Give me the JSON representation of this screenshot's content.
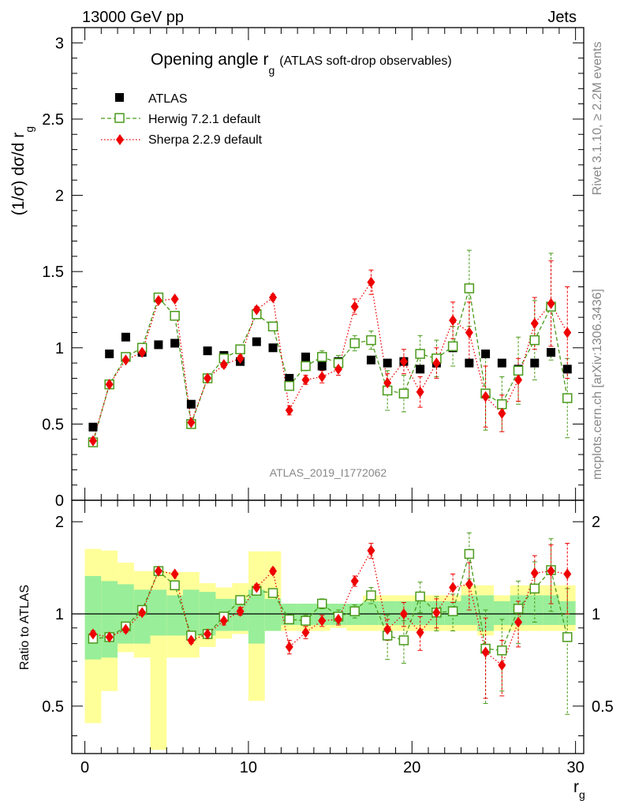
{
  "header": {
    "energy_label": "13000 GeV pp",
    "process_label": "Jets"
  },
  "side": {
    "rivet_label": "Rivet 3.1.10, ≥ 2.2M events",
    "mcplots_label": "mcplots.cern.ch [arXiv:1306.3436]"
  },
  "chart_data": {
    "type": "scatter",
    "title": "Opening angle r",
    "title_sub": "g",
    "title_suffix": "(ATLAS soft-drop observables)",
    "analysis_id": "ATLAS_2019_I1772062",
    "xlabel": "r",
    "xlabel_sub": "g",
    "ylabel": "(1/σ) dσ/d r",
    "ylabel_sub": "g",
    "ratio_ylabel": "Ratio to ATLAS",
    "xlim": [
      -0.8,
      30.5
    ],
    "ylim": [
      0,
      3.1
    ],
    "ratio_ylim": [
      0.35,
      2.35
    ],
    "x_ticks": [
      "0",
      "10",
      "20",
      "30"
    ],
    "y_ticks": [
      "0",
      "0.5",
      "1",
      "1.5",
      "2",
      "2.5",
      "3"
    ],
    "ratio_ticks": [
      "0.5",
      "1",
      "2"
    ],
    "legend": [
      "ATLAS",
      "Herwig 7.2.1 default",
      "Sherpa 2.2.9 default"
    ],
    "x": [
      0.5,
      1.5,
      2.5,
      3.5,
      4.5,
      5.5,
      6.5,
      7.5,
      8.5,
      9.5,
      10.5,
      11.5,
      12.5,
      13.5,
      14.5,
      15.5,
      16.5,
      17.5,
      18.5,
      19.5,
      20.5,
      21.5,
      22.5,
      23.5,
      24.5,
      25.5,
      26.5,
      27.5,
      28.5,
      29.5
    ],
    "series": [
      {
        "name": "ATLAS",
        "color": "#000000",
        "values": [
          0.48,
          0.96,
          1.07,
          0.97,
          1.02,
          1.03,
          0.63,
          0.98,
          0.95,
          0.91,
          1.04,
          1.0,
          0.8,
          0.94,
          0.88,
          0.91,
          1.03,
          0.92,
          0.9,
          0.91,
          0.86,
          0.9,
          1.0,
          0.9,
          0.96,
          0.9,
          0.86,
          0.9,
          0.97,
          0.86
        ]
      },
      {
        "name": "Herwig 7.2.1 default",
        "color": "#4a9a1a",
        "values": [
          0.38,
          0.76,
          0.94,
          1.0,
          1.33,
          1.21,
          0.5,
          0.8,
          0.93,
          0.99,
          1.22,
          1.14,
          0.75,
          0.88,
          0.94,
          0.9,
          1.03,
          1.05,
          0.72,
          0.7,
          0.96,
          0.93,
          1.01,
          1.39,
          0.7,
          0.63,
          0.85,
          1.05,
          1.27,
          0.67
        ],
        "errors": [
          0.01,
          0.01,
          0.01,
          0.01,
          0.01,
          0.01,
          0.01,
          0.02,
          0.02,
          0.02,
          0.02,
          0.02,
          0.02,
          0.03,
          0.04,
          0.05,
          0.05,
          0.06,
          0.13,
          0.12,
          0.12,
          0.12,
          0.13,
          0.25,
          0.24,
          0.18,
          0.22,
          0.26,
          0.35,
          0.26
        ]
      },
      {
        "name": "Sherpa 2.2.9 default",
        "color": "#ee0000",
        "values": [
          0.39,
          0.76,
          0.92,
          0.97,
          1.31,
          1.32,
          0.51,
          0.8,
          0.89,
          0.93,
          1.25,
          1.33,
          0.59,
          0.79,
          0.81,
          0.86,
          1.27,
          1.43,
          0.77,
          0.91,
          0.71,
          0.9,
          1.18,
          1.1,
          0.68,
          0.57,
          0.79,
          1.16,
          1.29,
          1.1
        ],
        "errors": [
          0.01,
          0.01,
          0.01,
          0.01,
          0.01,
          0.01,
          0.01,
          0.02,
          0.02,
          0.02,
          0.02,
          0.02,
          0.03,
          0.03,
          0.04,
          0.04,
          0.05,
          0.08,
          0.06,
          0.08,
          0.1,
          0.1,
          0.12,
          0.2,
          0.2,
          0.12,
          0.14,
          0.17,
          0.28,
          0.3
        ]
      }
    ],
    "ratio": {
      "herwig": [
        0.83,
        0.84,
        0.91,
        1.03,
        1.38,
        1.24,
        0.85,
        0.86,
        0.98,
        1.11,
        1.19,
        1.17,
        0.96,
        0.95,
        1.08,
        0.98,
        1.02,
        1.15,
        0.85,
        0.82,
        1.14,
        1.01,
        1.02,
        1.57,
        0.77,
        0.76,
        1.04,
        1.21,
        1.39,
        0.84
      ],
      "sherpa": [
        0.86,
        0.84,
        0.89,
        1.01,
        1.38,
        1.35,
        0.82,
        0.86,
        0.95,
        1.02,
        1.22,
        1.38,
        0.78,
        0.87,
        0.95,
        0.96,
        1.28,
        1.61,
        0.89,
        1.0,
        0.87,
        1.01,
        1.22,
        1.25,
        0.75,
        0.68,
        0.94,
        1.36,
        1.38,
        1.35
      ],
      "herwig_err": [
        0.02,
        0.02,
        0.02,
        0.02,
        0.02,
        0.02,
        0.02,
        0.03,
        0.03,
        0.03,
        0.03,
        0.03,
        0.03,
        0.04,
        0.04,
        0.05,
        0.05,
        0.07,
        0.14,
        0.13,
        0.13,
        0.13,
        0.14,
        0.27,
        0.26,
        0.2,
        0.24,
        0.27,
        0.37,
        0.37
      ],
      "sherpa_err": [
        0.02,
        0.02,
        0.02,
        0.02,
        0.02,
        0.02,
        0.02,
        0.03,
        0.03,
        0.03,
        0.03,
        0.03,
        0.04,
        0.04,
        0.04,
        0.04,
        0.05,
        0.09,
        0.07,
        0.09,
        0.11,
        0.11,
        0.13,
        0.22,
        0.22,
        0.14,
        0.16,
        0.19,
        0.3,
        0.35
      ],
      "band_stat_lo": [
        0.71,
        0.72,
        0.8,
        0.8,
        0.85,
        0.85,
        0.85,
        0.85,
        0.88,
        0.88,
        0.8,
        0.88,
        0.92,
        0.92,
        0.92,
        0.92,
        0.92,
        0.92,
        0.92,
        0.92,
        0.92,
        0.92,
        0.92,
        0.92,
        0.88,
        0.92,
        0.92,
        0.92,
        0.92,
        0.92
      ],
      "band_stat_hi": [
        1.33,
        1.28,
        1.25,
        1.2,
        1.2,
        1.15,
        1.2,
        1.18,
        1.12,
        1.12,
        1.2,
        1.12,
        1.08,
        1.08,
        1.08,
        1.08,
        1.08,
        1.1,
        1.1,
        1.1,
        1.1,
        1.1,
        1.1,
        1.15,
        1.15,
        1.1,
        1.15,
        1.15,
        1.15,
        1.1
      ],
      "band_tot_lo": [
        0.44,
        0.56,
        0.75,
        0.72,
        0.35,
        0.72,
        0.72,
        0.78,
        0.83,
        0.86,
        0.52,
        0.88,
        0.88,
        0.88,
        0.88,
        0.9,
        0.88,
        0.88,
        0.88,
        0.88,
        0.88,
        0.88,
        0.88,
        0.88,
        0.85,
        0.88,
        0.88,
        0.88,
        0.88,
        0.88
      ],
      "band_tot_hi": [
        1.63,
        1.61,
        1.47,
        1.38,
        1.38,
        1.37,
        1.37,
        1.26,
        1.22,
        1.26,
        1.6,
        1.6,
        1.06,
        1.06,
        1.06,
        1.06,
        1.06,
        1.15,
        1.15,
        1.15,
        1.15,
        1.15,
        1.15,
        1.24,
        1.24,
        1.15,
        1.24,
        1.24,
        1.24,
        1.24
      ]
    }
  }
}
